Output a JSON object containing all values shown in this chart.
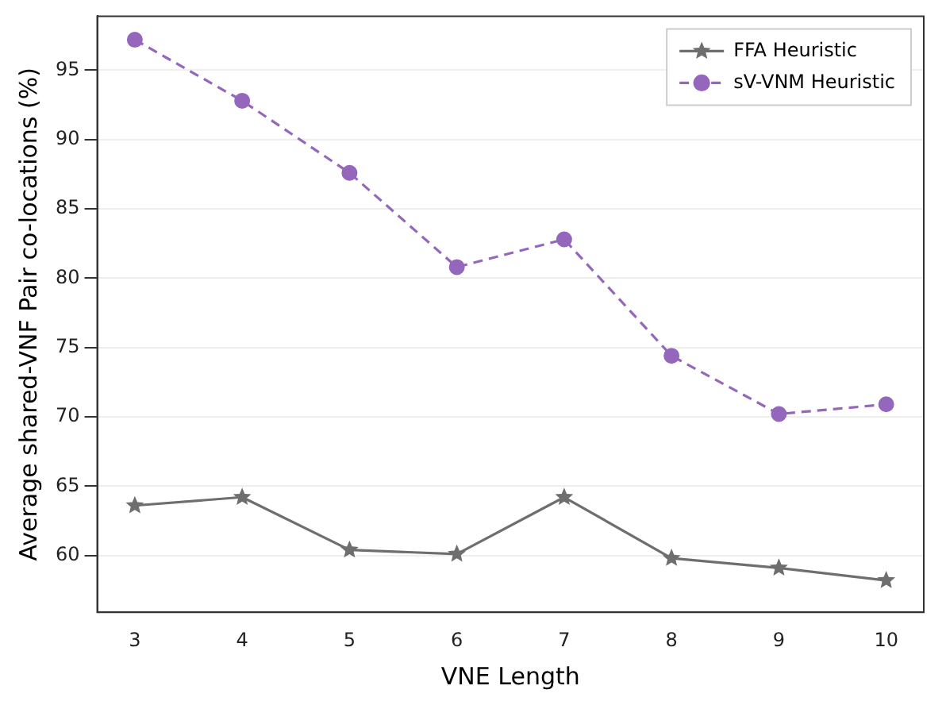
{
  "chart_data": {
    "type": "line",
    "xlabel": "VNE Length",
    "ylabel": "Average shared-VNF Pair co-locations (%)",
    "x": [
      3,
      4,
      5,
      6,
      7,
      8,
      9,
      10
    ],
    "xlim": [
      2.65,
      10.35
    ],
    "xticks": [
      3,
      4,
      5,
      6,
      7,
      8,
      9,
      10
    ],
    "ylim": [
      55.9,
      98.9
    ],
    "yticks": [
      60,
      65,
      70,
      75,
      80,
      85,
      90,
      95
    ],
    "grid": "y",
    "legend": "top right",
    "series": [
      {
        "name": "FFA Heuristic",
        "color": "#6e6e6e",
        "marker": "star",
        "line_style": "solid",
        "values": [
          63.6,
          64.2,
          60.4,
          60.1,
          64.2,
          59.8,
          59.1,
          58.2
        ]
      },
      {
        "name": "sV-VNM Heuristic",
        "color": "#9467bd",
        "marker": "circle",
        "line_style": "dashed",
        "values": [
          97.2,
          92.8,
          87.6,
          80.8,
          82.8,
          74.4,
          70.2,
          70.9
        ]
      }
    ]
  }
}
